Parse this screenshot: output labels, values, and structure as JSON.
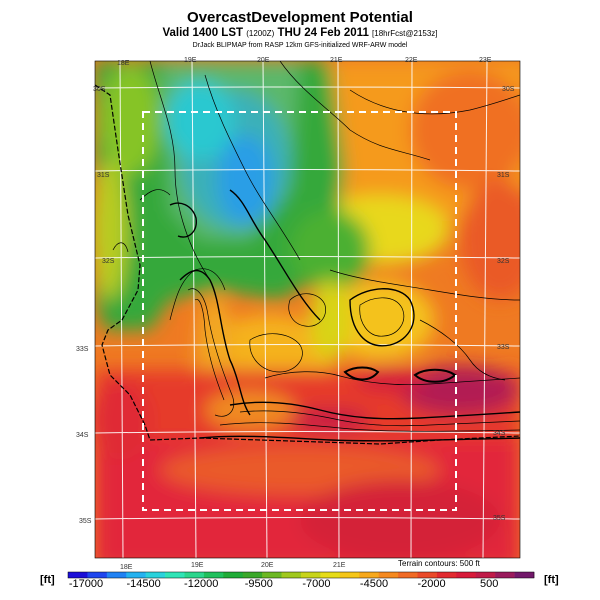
{
  "header": {
    "title": "OvercastDevelopment Potential",
    "valid_main": "Valid 1400 LST",
    "valid_code": "(1200Z)",
    "valid_date": "THU 24 Feb 2011",
    "valid_suffix": "[18hrFcst@2153z]",
    "credit": "DrJack BLIPMAP from RASP 12km GFS-initialized WRF-ARW model"
  },
  "map": {
    "lon_labels_top": [
      "18E",
      "19E",
      "20E",
      "21E",
      "22E",
      "23E"
    ],
    "lon_labels_bottom": [
      "18E",
      "19E",
      "20E",
      "21E"
    ],
    "lat_labels_left": [
      "30S",
      "31S",
      "32S",
      "33S",
      "34S",
      "35S"
    ],
    "lat_labels_right": [
      "30S",
      "31S",
      "32S",
      "33S",
      "34S",
      "35S"
    ],
    "terrain_note": "Terrain contours: 500 ft"
  },
  "colorbar": {
    "unit_left": "[ft]",
    "unit_right": "[ft]",
    "labels": [
      "-17000",
      "-14500",
      "-12000",
      "-9500",
      "-7000",
      "-4500",
      "-2000",
      "500"
    ],
    "colors": [
      "#1c0fd8",
      "#1f46ee",
      "#2182f4",
      "#25b2f0",
      "#2ad2dc",
      "#2fe4b6",
      "#2bd68c",
      "#20c05c",
      "#20ac38",
      "#3aa82a",
      "#6cb823",
      "#a0c81e",
      "#c8d41a",
      "#e6dc18",
      "#f5c618",
      "#f7a81b",
      "#f5891f",
      "#f06a25",
      "#ea4a2a",
      "#e22a30",
      "#d81a3a",
      "#c01a48",
      "#9a1a5c",
      "#72186a"
    ]
  }
}
